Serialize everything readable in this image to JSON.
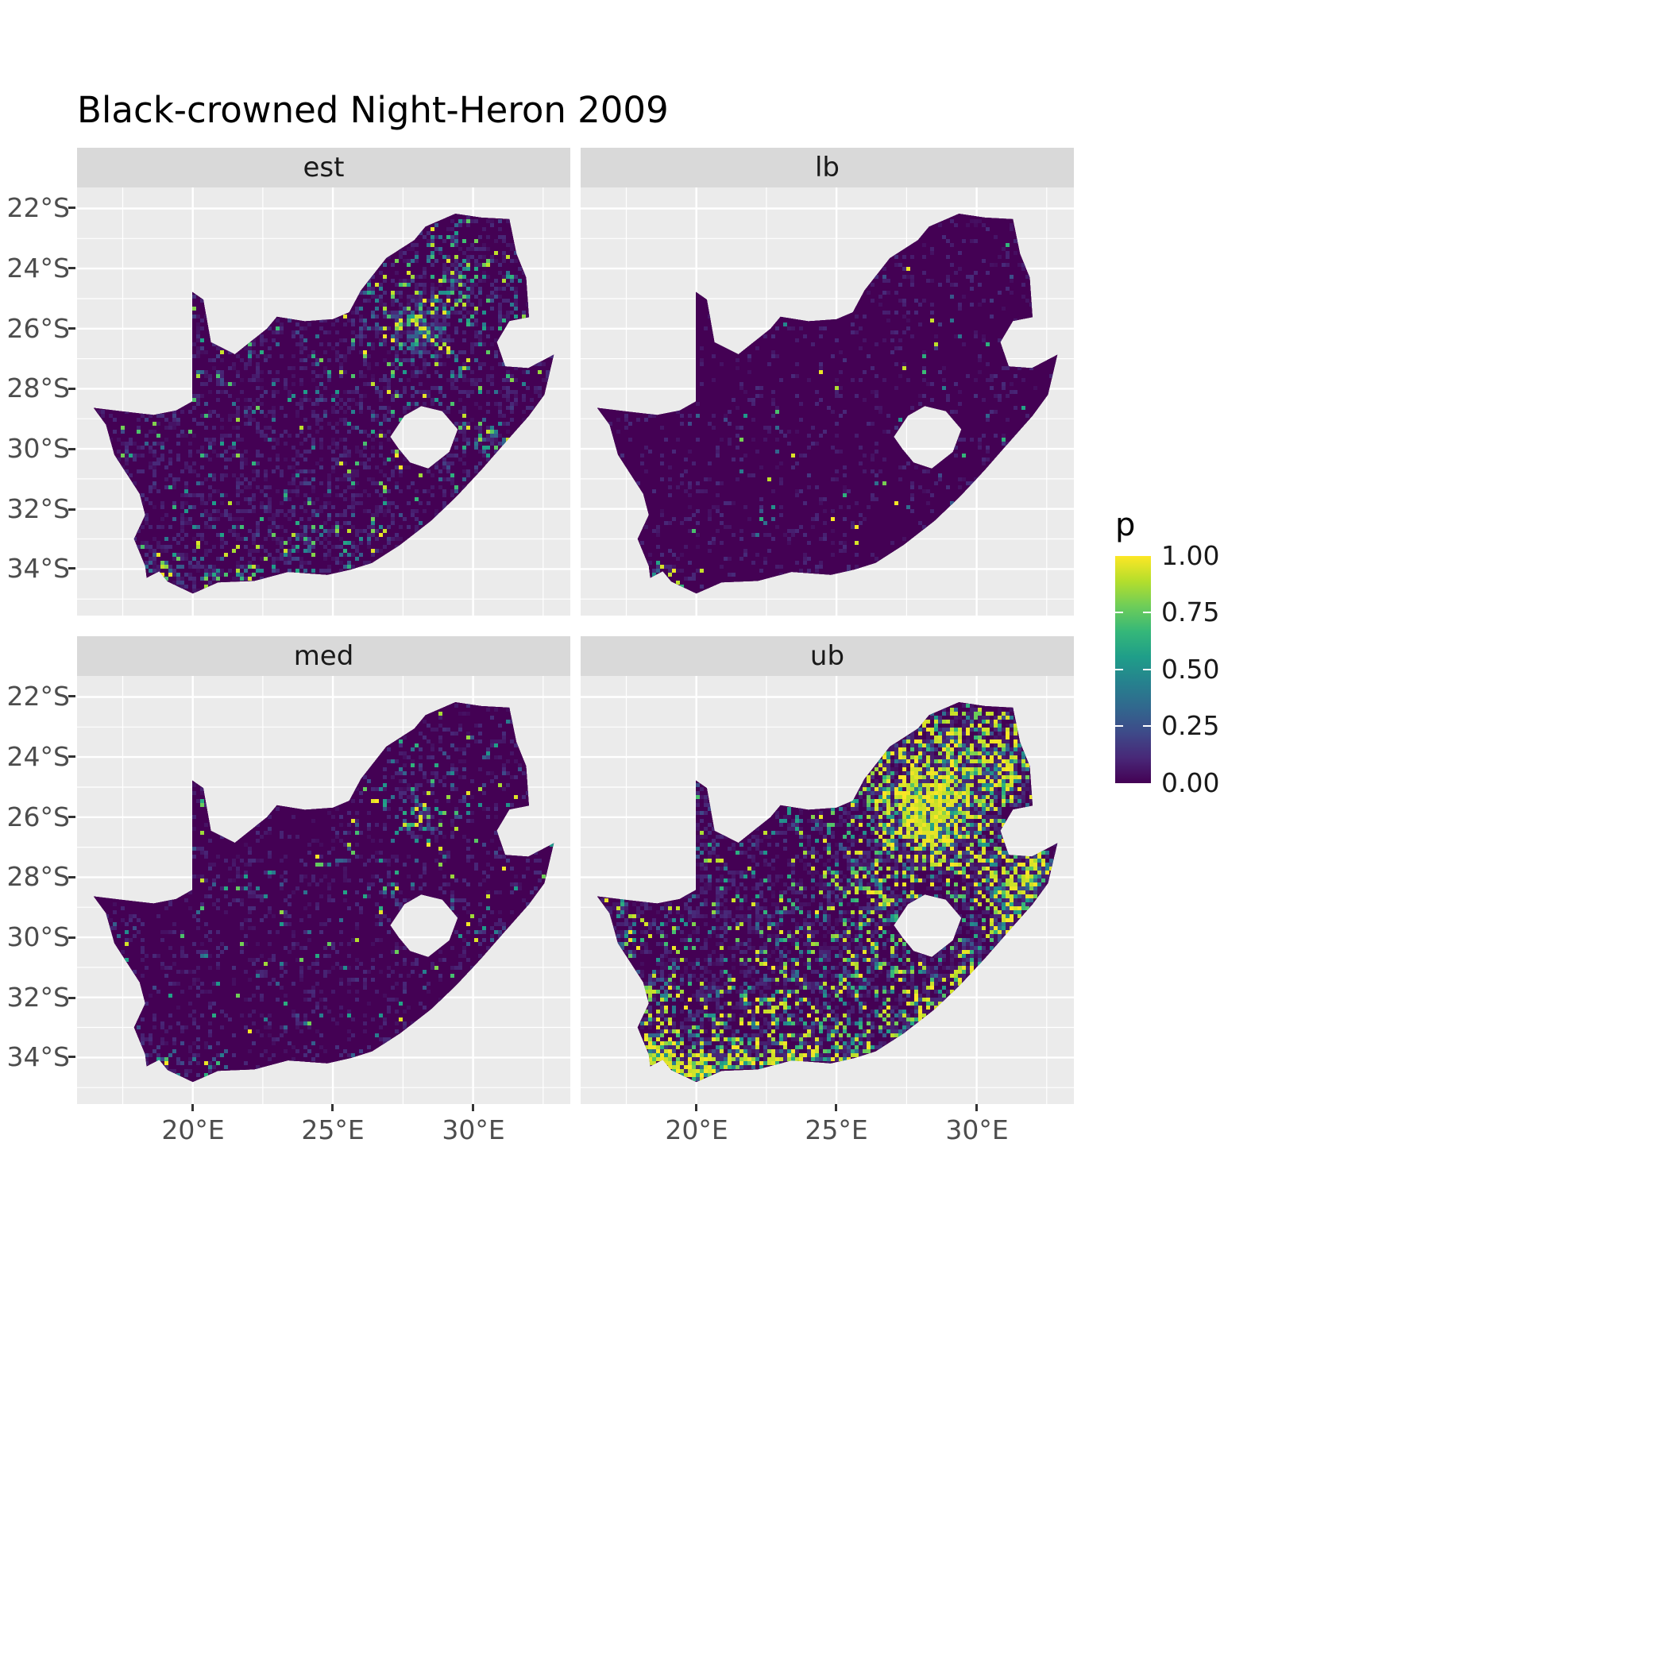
{
  "title": "Black-crowned Night-Heron 2009",
  "axes": {
    "y_ticks": [
      "22°S",
      "24°S",
      "26°S",
      "28°S",
      "30°S",
      "32°S",
      "34°S"
    ],
    "x_ticks": [
      "20°E",
      "25°E",
      "30°E"
    ]
  },
  "legend": {
    "title": "p",
    "ticks": [
      "1.00",
      "0.75",
      "0.50",
      "0.25",
      "0.00"
    ]
  },
  "colors": {
    "panel_bg": "#ebebeb",
    "strip_bg": "#d9d9d9",
    "grid": "#ffffff",
    "axis_text": "#4d4d4d",
    "base_map": "#440154"
  },
  "chart_data": {
    "type": "heatmap",
    "title": "Black-crowned Night-Heron 2009",
    "description": "Faceted raster maps of South Africa showing reporting-rate probability p (viridis scale 0-1) for facets est, lb, med, ub. Mostly p=0 (dark purple); hotspots around Gauteng (28E,26S), the south/west Cape coast and the KwaZulu-Natal coast; ub facet shows the strongest and most widespread high values, lb the weakest.",
    "legend": {
      "title": "p",
      "range": [
        0,
        1
      ],
      "breaks": [
        0,
        0.25,
        0.5,
        0.75,
        1
      ]
    },
    "x_domain": [
      15.87,
      33.47
    ],
    "y_domain": [
      -35.55,
      -21.3
    ],
    "x_major": [
      20,
      25,
      30
    ],
    "x_minor": [
      17.5,
      22.5,
      27.5,
      32.5
    ],
    "y_major": [
      -22,
      -24,
      -26,
      -28,
      -30,
      -32,
      -34
    ],
    "y_minor": [
      -23,
      -25,
      -27,
      -29,
      -31,
      -33,
      -35
    ],
    "base_color": "#440154",
    "palette": [
      "#440154",
      "#482878",
      "#3e4a89",
      "#31688e",
      "#26828e",
      "#1f9e89",
      "#35b779",
      "#6dcd59",
      "#b4de2c",
      "#fde725"
    ],
    "map_outline": [
      [
        16.45,
        -28.63
      ],
      [
        17.6,
        -28.76
      ],
      [
        18.6,
        -28.87
      ],
      [
        19.4,
        -28.72
      ],
      [
        19.98,
        -28.42
      ],
      [
        19.98,
        -24.77
      ],
      [
        20.38,
        -25.03
      ],
      [
        20.65,
        -26.45
      ],
      [
        21.5,
        -26.85
      ],
      [
        22.64,
        -26.0
      ],
      [
        23.0,
        -25.6
      ],
      [
        24.0,
        -25.75
      ],
      [
        25.0,
        -25.68
      ],
      [
        25.58,
        -25.45
      ],
      [
        26.0,
        -24.72
      ],
      [
        26.9,
        -23.65
      ],
      [
        27.9,
        -23.05
      ],
      [
        28.3,
        -22.6
      ],
      [
        29.37,
        -22.17
      ],
      [
        30.3,
        -22.3
      ],
      [
        31.3,
        -22.35
      ],
      [
        31.55,
        -23.5
      ],
      [
        31.9,
        -24.3
      ],
      [
        32.0,
        -25.62
      ],
      [
        31.3,
        -25.75
      ],
      [
        30.85,
        -26.45
      ],
      [
        31.15,
        -27.25
      ],
      [
        31.97,
        -27.31
      ],
      [
        32.89,
        -26.86
      ],
      [
        32.55,
        -28.2
      ],
      [
        32.0,
        -28.9
      ],
      [
        31.05,
        -29.9
      ],
      [
        30.3,
        -30.7
      ],
      [
        29.4,
        -31.6
      ],
      [
        28.5,
        -32.4
      ],
      [
        27.4,
        -33.2
      ],
      [
        26.4,
        -33.8
      ],
      [
        25.65,
        -34.02
      ],
      [
        24.8,
        -34.2
      ],
      [
        23.4,
        -34.1
      ],
      [
        22.2,
        -34.4
      ],
      [
        20.9,
        -34.45
      ],
      [
        20.0,
        -34.82
      ],
      [
        19.1,
        -34.42
      ],
      [
        18.8,
        -34.08
      ],
      [
        18.35,
        -34.3
      ],
      [
        18.3,
        -33.9
      ],
      [
        17.9,
        -33.0
      ],
      [
        18.3,
        -32.2
      ],
      [
        18.1,
        -31.5
      ],
      [
        17.2,
        -30.2
      ],
      [
        16.9,
        -29.2
      ]
    ],
    "lesotho_hole": [
      [
        27.05,
        -29.6
      ],
      [
        27.55,
        -28.9
      ],
      [
        28.15,
        -28.58
      ],
      [
        28.9,
        -28.75
      ],
      [
        29.45,
        -29.35
      ],
      [
        29.15,
        -30.1
      ],
      [
        28.4,
        -30.65
      ],
      [
        27.75,
        -30.45
      ],
      [
        27.35,
        -30.0
      ]
    ],
    "facets": [
      {
        "id": "est",
        "label": "est",
        "seed": 101,
        "base_density": 0.05,
        "noise": 0.25,
        "yellow_p": 0.02,
        "yellow_boost": 0.25,
        "value_pow": 1.6,
        "clusters": [
          [
            28.0,
            -26.1,
            1.1,
            0.55
          ],
          [
            28.6,
            -25.0,
            2.0,
            0.18
          ],
          [
            27.0,
            -25.8,
            1.5,
            0.12
          ],
          [
            29.5,
            -23.8,
            1.8,
            0.1
          ],
          [
            30.8,
            -24.8,
            1.5,
            0.12
          ],
          [
            29.0,
            -26.8,
            1.5,
            0.15
          ],
          [
            30.0,
            -29.6,
            1.0,
            0.25
          ],
          [
            30.9,
            -29.8,
            0.6,
            0.35
          ],
          [
            28.4,
            -28.3,
            1.2,
            0.12
          ],
          [
            26.8,
            -28.6,
            1.0,
            0.12
          ],
          [
            18.5,
            -33.9,
            0.7,
            0.35
          ],
          [
            19.3,
            -34.4,
            0.8,
            0.3
          ],
          [
            20.5,
            -34.3,
            1.0,
            0.2
          ],
          [
            22.3,
            -34.0,
            1.2,
            0.18
          ],
          [
            23.8,
            -33.9,
            0.9,
            0.2
          ],
          [
            25.6,
            -33.9,
            0.7,
            0.3
          ],
          [
            27.0,
            -33.0,
            0.9,
            0.2
          ],
          [
            24.0,
            -32.8,
            1.5,
            0.08
          ],
          [
            21.0,
            -33.3,
            1.5,
            0.08
          ],
          [
            31.3,
            -26.9,
            0.8,
            0.2
          ],
          [
            26.5,
            -24.5,
            1.0,
            0.1
          ]
        ]
      },
      {
        "id": "lb",
        "label": "lb",
        "seed": 202,
        "base_density": 0.012,
        "noise": 0.1,
        "yellow_p": 0.1,
        "yellow_boost": 0.3,
        "value_pow": 2.2,
        "clusters": [
          [
            28.0,
            -26.0,
            1.0,
            0.05
          ],
          [
            29.0,
            -24.5,
            1.5,
            0.03
          ],
          [
            31.2,
            -27.0,
            0.6,
            0.1
          ],
          [
            18.6,
            -34.1,
            0.5,
            0.3
          ],
          [
            19.2,
            -34.5,
            0.5,
            0.2
          ],
          [
            30.9,
            -29.8,
            0.4,
            0.1
          ],
          [
            25.6,
            -33.95,
            0.4,
            0.08
          ],
          [
            22.5,
            -33.0,
            1.0,
            0.02
          ]
        ]
      },
      {
        "id": "med",
        "label": "med",
        "seed": 303,
        "base_density": 0.03,
        "noise": 0.15,
        "yellow_p": 0.06,
        "yellow_boost": 0.3,
        "value_pow": 1.9,
        "clusters": [
          [
            28.0,
            -26.1,
            1.0,
            0.4
          ],
          [
            28.6,
            -25.2,
            1.6,
            0.12
          ],
          [
            27.2,
            -25.5,
            1.2,
            0.08
          ],
          [
            30.9,
            -29.8,
            0.5,
            0.3
          ],
          [
            30.1,
            -29.6,
            0.8,
            0.15
          ],
          [
            18.5,
            -33.95,
            0.6,
            0.35
          ],
          [
            19.4,
            -34.4,
            0.7,
            0.25
          ],
          [
            20.6,
            -34.3,
            0.8,
            0.15
          ],
          [
            25.6,
            -33.9,
            0.6,
            0.2
          ],
          [
            23.8,
            -33.9,
            0.8,
            0.12
          ],
          [
            27.0,
            -33.0,
            0.8,
            0.12
          ],
          [
            26.5,
            -28.8,
            1.0,
            0.1
          ],
          [
            31.3,
            -26.9,
            0.7,
            0.15
          ],
          [
            29.8,
            -23.8,
            1.5,
            0.06
          ]
        ]
      },
      {
        "id": "ub",
        "label": "ub",
        "seed": 404,
        "base_density": 0.12,
        "noise": 0.3,
        "yellow_p": 0.1,
        "yellow_boost": 0.55,
        "value_pow": 1.1,
        "clusters": [
          [
            28.1,
            -26.1,
            1.6,
            0.85
          ],
          [
            29.3,
            -25.2,
            2.2,
            0.5
          ],
          [
            27.0,
            -25.0,
            2.0,
            0.35
          ],
          [
            30.5,
            -23.5,
            2.0,
            0.3
          ],
          [
            28.5,
            -23.3,
            1.8,
            0.3
          ],
          [
            31.2,
            -24.5,
            1.3,
            0.35
          ],
          [
            29.5,
            -27.5,
            1.8,
            0.3
          ],
          [
            26.7,
            -28.9,
            1.3,
            0.35
          ],
          [
            25.8,
            -27.8,
            1.5,
            0.2
          ],
          [
            31.0,
            -28.0,
            1.2,
            0.45
          ],
          [
            31.8,
            -28.6,
            0.9,
            0.6
          ],
          [
            30.9,
            -29.8,
            0.9,
            0.6
          ],
          [
            30.2,
            -30.7,
            0.8,
            0.5
          ],
          [
            29.4,
            -31.4,
            0.8,
            0.45
          ],
          [
            28.4,
            -32.2,
            0.9,
            0.4
          ],
          [
            27.5,
            -33.0,
            0.9,
            0.45
          ],
          [
            26.0,
            -33.8,
            1.0,
            0.5
          ],
          [
            24.5,
            -34.1,
            1.2,
            0.5
          ],
          [
            23.0,
            -34.2,
            1.2,
            0.55
          ],
          [
            21.3,
            -34.4,
            1.2,
            0.6
          ],
          [
            19.9,
            -34.6,
            1.0,
            0.8
          ],
          [
            18.9,
            -34.3,
            0.8,
            0.9
          ],
          [
            18.4,
            -33.8,
            0.7,
            0.8
          ],
          [
            17.9,
            -32.6,
            0.8,
            0.45
          ],
          [
            18.3,
            -31.8,
            0.8,
            0.3
          ],
          [
            17.3,
            -30.0,
            0.7,
            0.35
          ],
          [
            16.8,
            -29.0,
            0.6,
            0.4
          ],
          [
            20.0,
            -33.0,
            1.5,
            0.2
          ],
          [
            22.5,
            -32.5,
            1.8,
            0.18
          ],
          [
            25.0,
            -32.0,
            1.8,
            0.15
          ],
          [
            26.5,
            -31.0,
            1.5,
            0.15
          ],
          [
            24.0,
            -30.0,
            2.0,
            0.08
          ],
          [
            32.3,
            -27.8,
            0.8,
            0.6
          ],
          [
            32.0,
            -26.9,
            0.6,
            0.5
          ]
        ]
      }
    ]
  }
}
